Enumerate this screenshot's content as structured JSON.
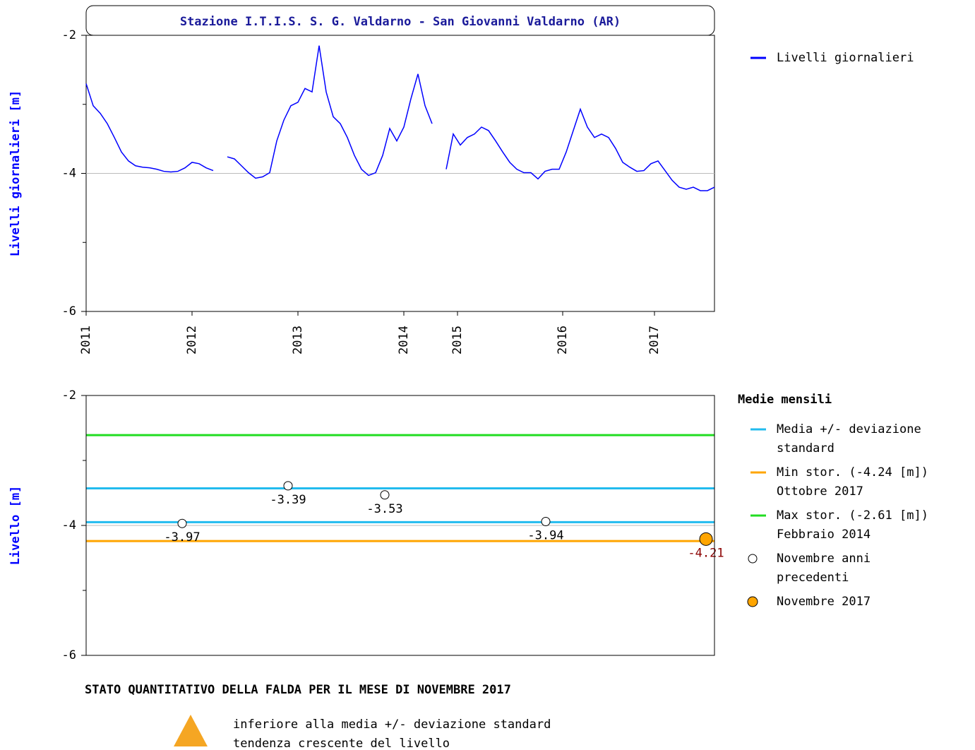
{
  "chart_data": [
    {
      "type": "line",
      "title": "Stazione I.T.I.S. S. G. Valdarno - San Giovanni Valdarno (AR)",
      "ylabel": "Livelli giornalieri [m]",
      "x": [
        0,
        1,
        2,
        3,
        4,
        5,
        6,
        7,
        8,
        9,
        10,
        11,
        12,
        13,
        14,
        15,
        16,
        17,
        18,
        19,
        20,
        21,
        22,
        23,
        24,
        25,
        26,
        27,
        28,
        29,
        30,
        31,
        32,
        33,
        34,
        35,
        36,
        37,
        38,
        39,
        40,
        41,
        42,
        43,
        44,
        45,
        46,
        47,
        48,
        49,
        50,
        51,
        52,
        53,
        54,
        55,
        56,
        57,
        58,
        59,
        60,
        61,
        62,
        63,
        64,
        65,
        66,
        67,
        68,
        69,
        70,
        71,
        72,
        73,
        74,
        75,
        76,
        77,
        78,
        79,
        80,
        81,
        82,
        83,
        84,
        85,
        86,
        87,
        88,
        89
      ],
      "series": [
        {
          "name": "Livelli giornalieri",
          "color": "#0000ff",
          "values": [
            -2.7,
            -3.02,
            -3.13,
            -3.28,
            -3.48,
            -3.69,
            -3.82,
            -3.89,
            -3.91,
            -3.92,
            -3.94,
            -3.97,
            -3.98,
            -3.97,
            -3.92,
            -3.84,
            -3.86,
            -3.92,
            -3.96,
            null,
            -3.76,
            -3.79,
            -3.89,
            -3.99,
            -4.07,
            -4.05,
            -3.99,
            -3.53,
            -3.23,
            -3.02,
            -2.97,
            -2.77,
            -2.82,
            -2.15,
            -2.82,
            -3.18,
            -3.28,
            -3.48,
            -3.74,
            -3.94,
            -4.03,
            -3.99,
            -3.74,
            -3.35,
            -3.53,
            -3.33,
            -2.92,
            -2.56,
            -3.02,
            -3.28,
            null,
            -3.94,
            -3.43,
            -3.59,
            -3.48,
            -3.43,
            -3.33,
            -3.38,
            -3.53,
            -3.69,
            -3.84,
            -3.94,
            -3.99,
            -3.99,
            -4.08,
            -3.97,
            -3.94,
            -3.94,
            -3.69,
            -3.38,
            -3.07,
            -3.33,
            -3.48,
            -3.43,
            -3.48,
            -3.64,
            -3.84,
            -3.91,
            -3.97,
            -3.96,
            -3.86,
            -3.82,
            -3.96,
            -4.1,
            -4.2,
            -4.23,
            -4.2,
            -4.25,
            -4.25,
            -4.2
          ]
        }
      ],
      "xlim": [
        0,
        89
      ],
      "xticks": [
        {
          "value": 0,
          "label": "2011"
        },
        {
          "value": 15,
          "label": "2012"
        },
        {
          "value": 30,
          "label": "2013"
        },
        {
          "value": 45,
          "label": "2014"
        },
        {
          "value": 52.6,
          "label": "2015"
        },
        {
          "value": 67.5,
          "label": "2016"
        },
        {
          "value": 80.5,
          "label": "2017"
        }
      ],
      "ylim": [
        -6,
        -2
      ],
      "yticks": [
        -2,
        -4,
        -6
      ],
      "yminorticks": [
        -3,
        -5
      ],
      "hline": -4
    },
    {
      "type": "levels",
      "ylabel": "Livello [m]",
      "ylim": [
        -6,
        -2
      ],
      "yticks": [
        -2,
        -4,
        -6
      ],
      "yminorticks": [
        -3,
        -5
      ],
      "hline": -4,
      "xlim": [
        0,
        89
      ],
      "legend_title": "Medie mensili",
      "lines": [
        {
          "label": [
            "Media +/- deviazione",
            "standard"
          ],
          "color": "#22bbee",
          "values": [
            -3.43,
            -3.95
          ]
        },
        {
          "label": [
            "Min stor. (-4.24 [m])",
            "Ottobre 2017"
          ],
          "color": "#ffa500",
          "values": [
            -4.24
          ]
        },
        {
          "label": [
            "Max stor. (-2.61 [m])",
            "Febbraio 2014"
          ],
          "color": "#22dd22",
          "values": [
            -2.61
          ]
        }
      ],
      "points": {
        "label": [
          "Novembre anni",
          "precedenti"
        ],
        "x": [
          13.6,
          28.6,
          42.3,
          65.1
        ],
        "values": [
          -3.97,
          -3.39,
          -3.53,
          -3.94
        ]
      },
      "current": {
        "label": [
          "Novembre 2017"
        ],
        "color": "#ffa500",
        "x": [
          87.8
        ],
        "values": [
          -4.21
        ]
      }
    }
  ],
  "footer": {
    "title": "STATO QUANTITATIVO DELLA FALDA PER IL MESE DI NOVEMBRE 2017",
    "lines": [
      "inferiore alla media +/- deviazione standard",
      "tendenza crescente del livello"
    ]
  }
}
